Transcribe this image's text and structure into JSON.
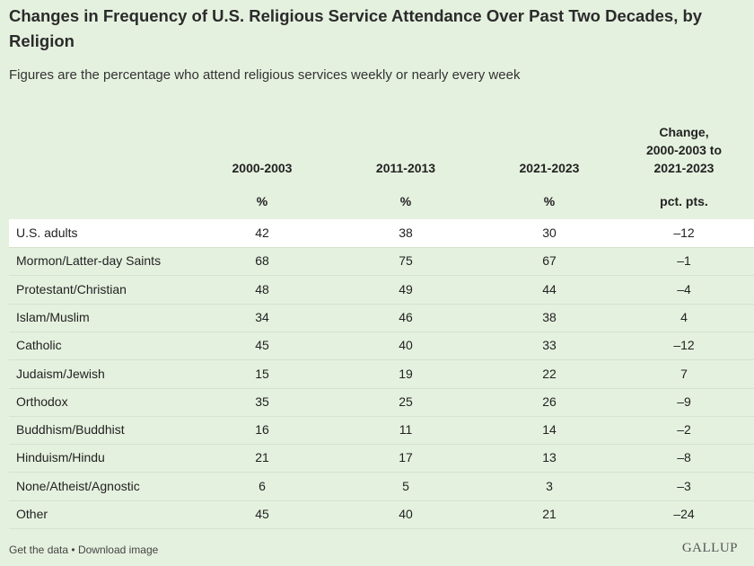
{
  "header": {
    "title": "Changes in Frequency of U.S. Religious Service Attendance Over Past Two Decades, by Religion",
    "subtitle": "Figures are the percentage who attend religious services weekly or nearly every week"
  },
  "table": {
    "columns": [
      "2000-2003",
      "2011-2013",
      "2021-2023"
    ],
    "change_header": [
      "Change,",
      "2000-2003 to",
      "2021-2023"
    ],
    "units": [
      "%",
      "%",
      "%",
      "pct. pts."
    ],
    "rows": [
      [
        "U.S. adults",
        42,
        38,
        30,
        "–12"
      ],
      [
        "Mormon/Latter-day Saints",
        68,
        75,
        67,
        "–1"
      ],
      [
        "Protestant/Christian",
        48,
        49,
        44,
        "–4"
      ],
      [
        "Islam/Muslim",
        34,
        46,
        38,
        "4"
      ],
      [
        "Catholic",
        45,
        40,
        33,
        "–12"
      ],
      [
        "Judaism/Jewish",
        15,
        19,
        22,
        "7"
      ],
      [
        "Orthodox",
        35,
        25,
        26,
        "–9"
      ],
      [
        "Buddhism/Buddhist",
        16,
        11,
        14,
        "–2"
      ],
      [
        "Hinduism/Hindu",
        21,
        17,
        13,
        "–8"
      ],
      [
        "None/Atheist/Agnostic",
        6,
        5,
        3,
        "–3"
      ],
      [
        "Other",
        45,
        40,
        21,
        "–24"
      ]
    ]
  },
  "footer": {
    "links": [
      "Get the data",
      "Download image"
    ],
    "separator": "•",
    "logo": "GALLUP"
  }
}
